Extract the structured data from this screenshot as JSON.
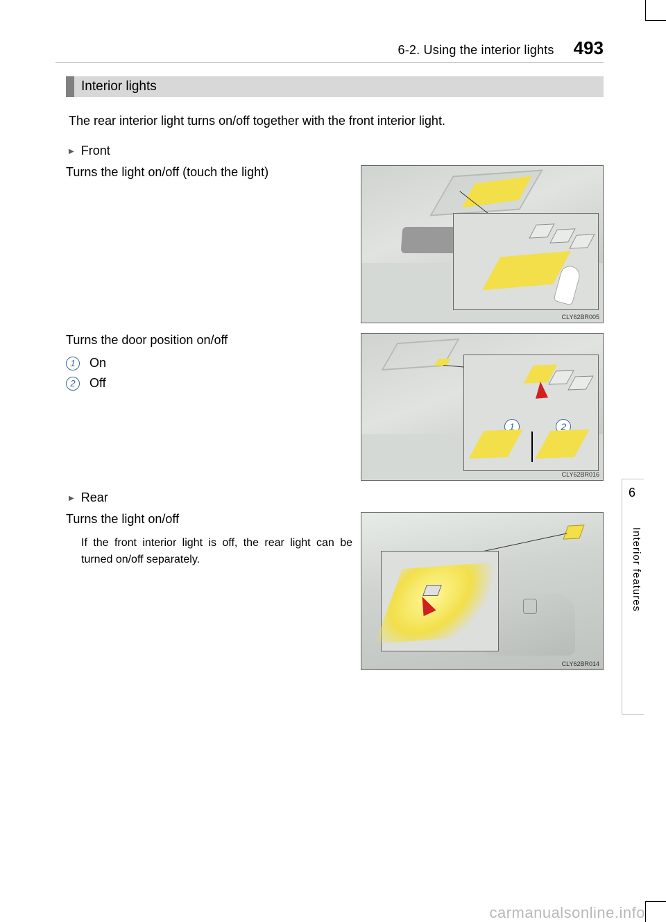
{
  "header": {
    "section": "6-2. Using the interior lights",
    "page": "493"
  },
  "sidebar": {
    "chapter_num": "6",
    "chapter_name": "Interior features"
  },
  "title": "Interior lights",
  "intro": "The rear interior light turns on/off together with the front interior light.",
  "front": {
    "heading": "Front",
    "p1": "Turns the light on/off (touch the light)",
    "fig1_code": "CLY62BR005",
    "p2": "Turns the door position on/off",
    "items": {
      "one": "On",
      "two": "Off"
    },
    "callouts": {
      "one": "1",
      "two": "2"
    },
    "fig2_code": "CLY62BR016"
  },
  "rear": {
    "heading": "Rear",
    "p1": "Turns the light on/off",
    "note": "If the front interior light is off, the rear light can be turned on/off separately.",
    "fig3_code": "CLY62BR014"
  },
  "watermark": "carmanualsonline.info",
  "style": {
    "accent": "#3a6aa0",
    "header_bg": "#d8d8d8",
    "header_bar": "#808080",
    "yellow": "#f2df4a",
    "arrow": "#d02020"
  }
}
